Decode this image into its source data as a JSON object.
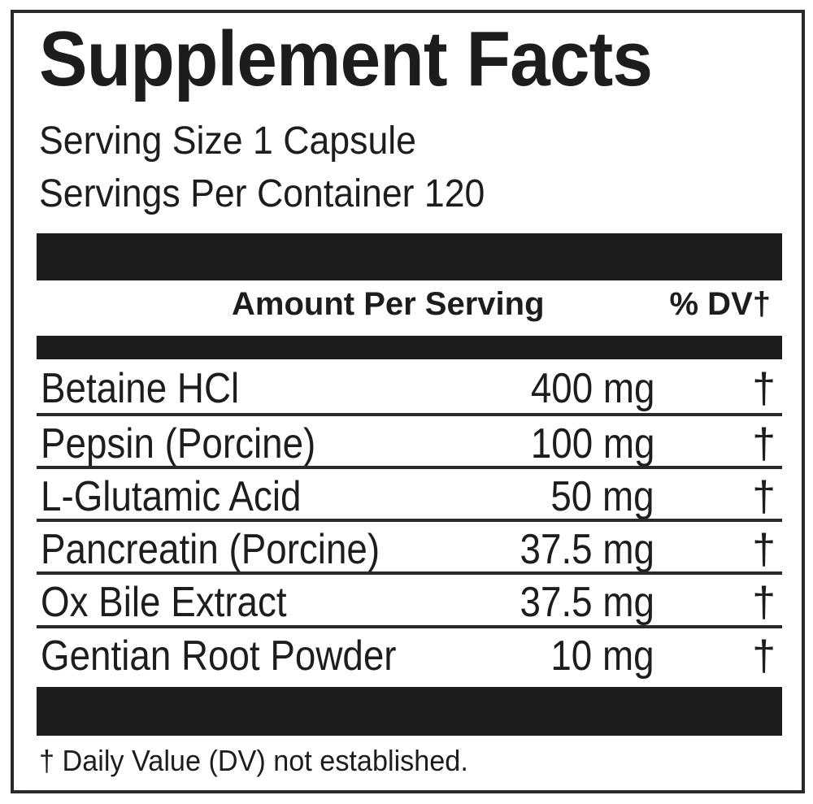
{
  "title": "Supplement Facts",
  "serving_size": "Serving Size 1 Capsule",
  "servings_per_container": "Servings Per Container 120",
  "header": {
    "amount": "Amount Per Serving",
    "dv": "% DV†"
  },
  "rows": [
    {
      "name": "Betaine HCl",
      "amount": "400 mg",
      "dv": "†"
    },
    {
      "name": "Pepsin (Porcine)",
      "amount": "100 mg",
      "dv": "†"
    },
    {
      "name": "L-Glutamic Acid",
      "amount": "50 mg",
      "dv": "†"
    },
    {
      "name": "Pancreatin (Porcine)",
      "amount": "37.5 mg",
      "dv": "†"
    },
    {
      "name": "Ox Bile Extract",
      "amount": "37.5 mg",
      "dv": "†"
    },
    {
      "name": "Gentian Root Powder",
      "amount": "10 mg",
      "dv": "†"
    }
  ],
  "footnote": "† Daily Value (DV) not established."
}
